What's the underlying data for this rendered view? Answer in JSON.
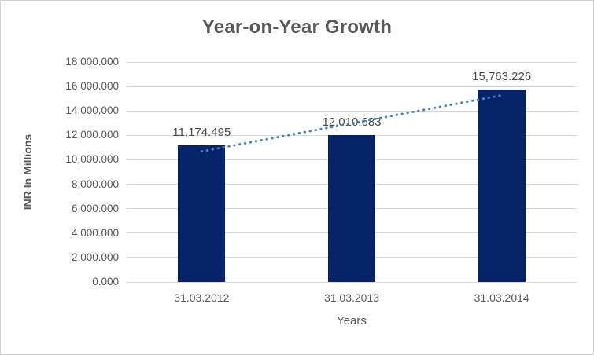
{
  "chart_data": {
    "type": "bar",
    "title": "Year-on-Year Growth",
    "categories": [
      "31.03.2012",
      "31.03.2013",
      "31.03.2014"
    ],
    "values": [
      11174.495,
      12010.683,
      15763.226
    ],
    "data_labels": [
      "11,174.495",
      "12,010.683",
      "15,763.226"
    ],
    "xlabel": "Years",
    "ylabel": "INR In Millions",
    "ylim": [
      0,
      18000
    ],
    "ytick_step": 2000,
    "ytick_labels": [
      "0.000",
      "2,000.000",
      "4,000.000",
      "6,000.000",
      "8,000.000",
      "10,000.000",
      "12,000.000",
      "14,000.000",
      "16,000.000",
      "18,000.000"
    ],
    "grid": true,
    "legend": "none",
    "trendline": {
      "type": "linear",
      "style": "dotted"
    },
    "colors": {
      "bar": "#052366",
      "trendline": "#4583C5",
      "gridline": "#D9D9D9",
      "axis_text": "#595959",
      "title_text": "#595959",
      "frame_border": "#D2D2D2",
      "background": "#FFFFFF"
    }
  }
}
